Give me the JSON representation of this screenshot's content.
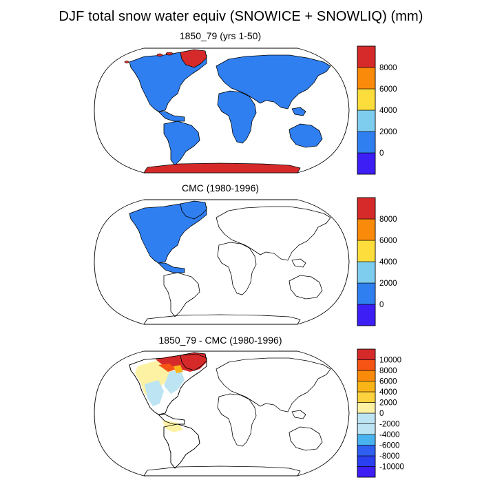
{
  "title": "DJF total snow water equiv (SNOWICE + SNOWLIQ) (mm)",
  "colors": {
    "violet": "#3d1ef5",
    "blue": "#2f7ff0",
    "lightblue": "#7fcdee",
    "yellow": "#fcdd3b",
    "orange": "#fa8a0a",
    "orangered": "#f55414",
    "red": "#d62a2a",
    "paleyellow": "#fdf2a4",
    "lightcyan": "#bde4f2",
    "skyblue": "#48b3ee",
    "midblue": "#2f5ff0",
    "royalblue": "#2a3ff0",
    "amber": "#f9b418",
    "gold": "#fcd23e"
  },
  "panels": [
    {
      "id": "model",
      "title": "1850_79 (yrs 1-50)",
      "fill": "full",
      "colorbar": {
        "labels": [
          "8000",
          "6000",
          "4000",
          "2000",
          "0"
        ],
        "colors": [
          "violet",
          "blue",
          "lightblue",
          "yellow",
          "orange",
          "red"
        ]
      }
    },
    {
      "id": "obs",
      "title": "CMC (1980-1996)",
      "fill": "north-america",
      "colorbar": {
        "labels": [
          "8000",
          "6000",
          "4000",
          "2000",
          "0"
        ],
        "colors": [
          "violet",
          "blue",
          "lightblue",
          "yellow",
          "orange",
          "red"
        ]
      }
    },
    {
      "id": "diff",
      "title": "1850_79 - CMC (1980-1996)",
      "fill": "difference",
      "colorbar": {
        "labels": [
          "10000",
          "8000",
          "6000",
          "4000",
          "2000",
          "0",
          "-2000",
          "-4000",
          "-6000",
          "-8000",
          "-10000"
        ],
        "colors": [
          "violet",
          "royalblue",
          "midblue",
          "skyblue",
          "lightcyan",
          "lightcyan",
          "paleyellow",
          "gold",
          "amber",
          "orange",
          "orangered",
          "red"
        ]
      }
    }
  ]
}
